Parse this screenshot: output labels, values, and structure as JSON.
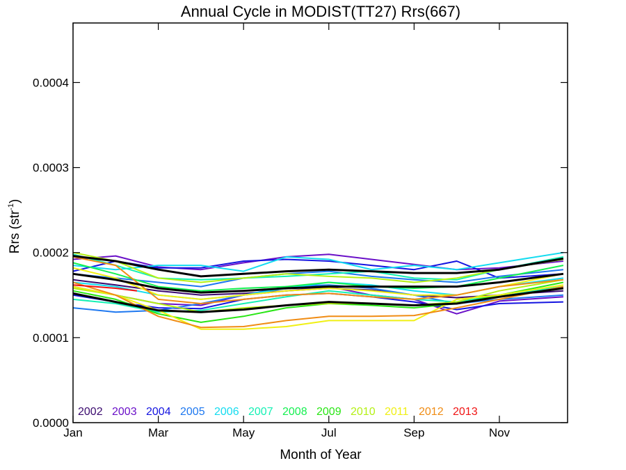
{
  "chart_data": {
    "type": "line",
    "title": "Annual Cycle in MODIST(TT27) Rrs(667)",
    "xlabel": "Month of Year",
    "ylabel_main": "Rrs (str",
    "ylabel_sup": "-1",
    "ylabel_close": ")",
    "xlim": [
      1,
      12.6
    ],
    "ylim": [
      0,
      0.00047
    ],
    "x_ticks": [
      {
        "x": 1,
        "label": "Jan"
      },
      {
        "x": 3,
        "label": "Mar"
      },
      {
        "x": 5,
        "label": "May"
      },
      {
        "x": 7,
        "label": "Jul"
      },
      {
        "x": 9,
        "label": "Sep"
      },
      {
        "x": 11,
        "label": "Nov"
      }
    ],
    "y_ticks": [
      {
        "y": 0.0,
        "label": "0.0000"
      },
      {
        "y": 0.0001,
        "label": "0.0001"
      },
      {
        "y": 0.0002,
        "label": "0.0002"
      },
      {
        "y": 0.0003,
        "label": "0.0003"
      },
      {
        "y": 0.0004,
        "label": "0.0004"
      }
    ],
    "legend": [
      {
        "name": "2002",
        "color": "#3a0a6e"
      },
      {
        "name": "2003",
        "color": "#6a10c8"
      },
      {
        "name": "2004",
        "color": "#1414e0"
      },
      {
        "name": "2005",
        "color": "#1e78f0"
      },
      {
        "name": "2006",
        "color": "#14dcf0"
      },
      {
        "name": "2007",
        "color": "#14f0b4"
      },
      {
        "name": "2008",
        "color": "#14f050"
      },
      {
        "name": "2009",
        "color": "#28e614"
      },
      {
        "name": "2010",
        "color": "#b4f014"
      },
      {
        "name": "2011",
        "color": "#f0f014"
      },
      {
        "name": "2012",
        "color": "#f08c14"
      },
      {
        "name": "2013",
        "color": "#f01414"
      }
    ],
    "series": [
      {
        "color": "#3a0a6e",
        "x": [
          1,
          2,
          3,
          4,
          5,
          6,
          7,
          8,
          9,
          10,
          11,
          12.5
        ],
        "y": [
          0.000168,
          0.000162,
          0.000155,
          0.00015,
          0.000152,
          0.000155,
          0.000158,
          0.000156,
          0.00015,
          0.000147,
          0.00015,
          0.000155
        ]
      },
      {
        "color": "#6a10c8",
        "x": [
          1,
          2,
          3,
          4,
          5,
          6,
          7,
          8,
          9,
          10,
          11,
          12.5
        ],
        "y": [
          0.000192,
          0.000196,
          0.000183,
          0.00018,
          0.000188,
          0.000195,
          0.000198,
          0.000192,
          0.000186,
          0.00018,
          0.000182,
          0.00019
        ]
      },
      {
        "color": "#6a10c8",
        "x": [
          1,
          2,
          3,
          4,
          5,
          6,
          7,
          8,
          9,
          10,
          11,
          12.5
        ],
        "y": [
          0.00016,
          0.00015,
          0.00014,
          0.000138,
          0.00015,
          0.000155,
          0.00016,
          0.00015,
          0.000145,
          0.000128,
          0.000143,
          0.000148
        ]
      },
      {
        "color": "#1414e0",
        "x": [
          1,
          2,
          3,
          4,
          5,
          6,
          7,
          8,
          9,
          10,
          11,
          12.5
        ],
        "y": [
          0.000178,
          0.00019,
          0.000182,
          0.000182,
          0.00019,
          0.000192,
          0.00019,
          0.000185,
          0.00018,
          0.00019,
          0.00017,
          0.000175
        ]
      },
      {
        "color": "#1414e0",
        "x": [
          1,
          2,
          3,
          4,
          5,
          6,
          7,
          8,
          9,
          10,
          11,
          12.5
        ],
        "y": [
          0.00015,
          0.000142,
          0.000135,
          0.000134,
          0.000145,
          0.00015,
          0.000152,
          0.000148,
          0.000142,
          0.000133,
          0.00014,
          0.000142
        ]
      },
      {
        "color": "#1e78f0",
        "x": [
          1,
          2,
          3,
          4,
          5,
          6,
          7,
          8,
          9,
          10,
          11,
          12.5
        ],
        "y": [
          0.000135,
          0.00013,
          0.000132,
          0.00014,
          0.00015,
          0.00016,
          0.000162,
          0.000158,
          0.00015,
          0.00014,
          0.000145,
          0.00015
        ]
      },
      {
        "color": "#1e78f0",
        "x": [
          1,
          2,
          3,
          4,
          5,
          6,
          7,
          8,
          9,
          10,
          11,
          12.5
        ],
        "y": [
          0.000175,
          0.00017,
          0.000165,
          0.00016,
          0.00017,
          0.000175,
          0.000178,
          0.000172,
          0.000168,
          0.000165,
          0.000172,
          0.00018
        ]
      },
      {
        "color": "#14dcf0",
        "x": [
          1,
          2,
          3,
          4,
          5,
          6,
          7,
          8,
          9,
          10,
          11,
          12.5
        ],
        "y": [
          0.000185,
          0.00018,
          0.000185,
          0.000185,
          0.000178,
          0.000195,
          0.000192,
          0.00018,
          0.000185,
          0.00018,
          0.000188,
          0.0002
        ]
      },
      {
        "color": "#14dcf0",
        "x": [
          1,
          2,
          3,
          4,
          5,
          6,
          7,
          8,
          9,
          10,
          11,
          12.5
        ],
        "y": [
          0.000165,
          0.00016,
          0.00015,
          0.000145,
          0.00015,
          0.000158,
          0.000165,
          0.000162,
          0.000155,
          0.00015,
          0.00016,
          0.00017
        ]
      },
      {
        "color": "#14f0b4",
        "x": [
          1,
          2,
          3,
          4,
          5,
          6,
          7,
          8,
          9,
          10,
          11,
          12.5
        ],
        "y": [
          0.000198,
          0.000185,
          0.00017,
          0.000168,
          0.00017,
          0.000172,
          0.000175,
          0.000178,
          0.00017,
          0.000168,
          0.00018,
          0.000195
        ]
      },
      {
        "color": "#14f0b4",
        "x": [
          1,
          2,
          3,
          4,
          5,
          6,
          7,
          8,
          9,
          10,
          11,
          12.5
        ],
        "y": [
          0.000145,
          0.00014,
          0.00013,
          0.000132,
          0.00014,
          0.000148,
          0.000155,
          0.00015,
          0.000145,
          0.000142,
          0.00015,
          0.00016
        ]
      },
      {
        "color": "#14f050",
        "x": [
          1,
          2,
          3,
          4,
          5,
          6,
          7,
          8,
          9,
          10,
          11,
          12.5
        ],
        "y": [
          0.000188,
          0.000175,
          0.00016,
          0.000155,
          0.000158,
          0.00016,
          0.000165,
          0.00016,
          0.000158,
          0.00016,
          0.00017,
          0.000185
        ]
      },
      {
        "color": "#28e614",
        "x": [
          1,
          2,
          3,
          4,
          5,
          6,
          7,
          8,
          9,
          10,
          11,
          12.5
        ],
        "y": [
          0.000155,
          0.000145,
          0.000128,
          0.000118,
          0.000125,
          0.000135,
          0.00014,
          0.000138,
          0.000135,
          0.00014,
          0.00015,
          0.000165
        ]
      },
      {
        "color": "#b4f014",
        "x": [
          1,
          2,
          3,
          4,
          5,
          6,
          7,
          8,
          9,
          10,
          11,
          12.5
        ],
        "y": [
          0.0002,
          0.00019,
          0.00017,
          0.000165,
          0.00017,
          0.000175,
          0.000172,
          0.00017,
          0.000165,
          0.00017,
          0.00018,
          0.000192
        ]
      },
      {
        "color": "#b4f014",
        "x": [
          1,
          2,
          3,
          4,
          5,
          6,
          7,
          8,
          9,
          10,
          11,
          12.5
        ],
        "y": [
          0.000158,
          0.00015,
          0.00014,
          0.00013,
          0.000135,
          0.000138,
          0.00014,
          0.00014,
          0.000138,
          0.000142,
          0.000155,
          0.000168
        ]
      },
      {
        "color": "#f0f014",
        "x": [
          1,
          2,
          3,
          4,
          5,
          6,
          7,
          8,
          9,
          10,
          11,
          12.5
        ],
        "y": [
          0.000182,
          0.00017,
          0.00015,
          0.000145,
          0.00015,
          0.000155,
          0.000158,
          0.000155,
          0.00015,
          0.00015,
          0.00016,
          0.000175
        ]
      },
      {
        "color": "#f0f014",
        "x": [
          1,
          2,
          3,
          4,
          5,
          6,
          7,
          8,
          9,
          10,
          11,
          12.5
        ],
        "y": [
          0.00016,
          0.00015,
          0.000132,
          0.00011,
          0.00011,
          0.000113,
          0.00012,
          0.00012,
          0.00012,
          0.000145,
          0.00015,
          0.000162
        ]
      },
      {
        "color": "#f08c14",
        "x": [
          1,
          2,
          3,
          4,
          5,
          6,
          7,
          8,
          9,
          10,
          11,
          12.5
        ],
        "y": [
          0.000165,
          0.00015,
          0.000125,
          0.000112,
          0.000113,
          0.00012,
          0.000125,
          0.000125,
          0.000126,
          0.000135,
          0.000145,
          0.00016
        ]
      },
      {
        "color": "#f08c14",
        "x": [
          1,
          2,
          3,
          4,
          5,
          6,
          7,
          8,
          9,
          10,
          11,
          12.5
        ],
        "y": [
          0.000195,
          0.000185,
          0.000145,
          0.00014,
          0.000145,
          0.00015,
          0.000152,
          0.000148,
          0.000145,
          0.00015,
          0.00016,
          0.000168
        ]
      },
      {
        "color": "#f01414",
        "x": [
          1,
          1.5,
          2,
          2.5
        ],
        "y": [
          0.000162,
          0.00016,
          0.000158,
          0.000155
        ]
      },
      {
        "color": "#000000",
        "width": 3,
        "x": [
          1,
          2,
          3,
          4,
          5,
          6,
          7,
          8,
          9,
          10,
          11,
          12.5
        ],
        "y": [
          0.000196,
          0.00019,
          0.00018,
          0.000172,
          0.000175,
          0.000178,
          0.00018,
          0.000178,
          0.000176,
          0.000176,
          0.00018,
          0.000193
        ]
      },
      {
        "color": "#000000",
        "width": 3,
        "x": [
          1,
          2,
          3,
          4,
          5,
          6,
          7,
          8,
          9,
          10,
          11,
          12.5
        ],
        "y": [
          0.000175,
          0.000168,
          0.000158,
          0.000153,
          0.000155,
          0.000158,
          0.00016,
          0.00016,
          0.00016,
          0.00016,
          0.000165,
          0.000175
        ]
      },
      {
        "color": "#000000",
        "width": 3,
        "x": [
          1,
          2,
          3,
          4,
          5,
          6,
          7,
          8,
          9,
          10,
          11,
          12.5
        ],
        "y": [
          0.000152,
          0.000142,
          0.000132,
          0.00013,
          0.000133,
          0.000138,
          0.000142,
          0.00014,
          0.000138,
          0.00014,
          0.000148,
          0.000158
        ]
      }
    ]
  }
}
